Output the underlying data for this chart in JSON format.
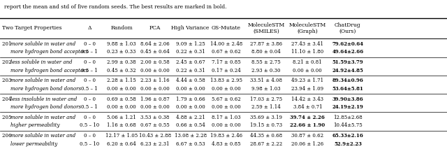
{
  "header_top": "report the mean and std of five random seeds. The best results are marked in bold.",
  "col_headers": [
    "Two Target Properties",
    "Δ",
    "Random",
    "PCA",
    "High Variance",
    "GS-Mutate",
    "MoleculeSTM\n(SMILES)",
    "MoleculeSTM\n(Graph)",
    "ChatDrug\n(Ours)"
  ],
  "rows": [
    {
      "property": "201 more soluble in water and",
      "property2": "more hydrogen bond acceptors",
      "italic": true,
      "delta1": "0 – 0",
      "delta2": "0.5 – 1",
      "random1": "9.88 ± 1.03",
      "random2": "0.23 ± 0.33",
      "pca1": "8.64 ± 2.06",
      "pca2": "0.45 ± 0.64",
      "hv1": "9.09 ± 1.25",
      "hv2": "0.22 ± 0.31",
      "gs1": "14.00 ± 2.48",
      "gs2": "0.67 ± 0.62",
      "stms1": "27.87 ± 3.86",
      "stms2": "8.80 ± 0.04",
      "stmg1": "27.43 ± 3.41",
      "stmg2": "11.10 ± 1.80",
      "cd1": "79.62±0.64",
      "cd2": "49.64±2.66",
      "bold1": true,
      "bold2": true
    },
    {
      "property": "202 less soluble in water and",
      "property2": "more hydrogen bond acceptors",
      "italic": true,
      "delta1": "0 – 0",
      "delta2": "0.5 – 1",
      "random1": "2.99 ± 0.38",
      "random2": "0.45 ± 0.32",
      "pca1": "2.00 ± 0.58",
      "pca2": "0.00 ± 0.00",
      "hv1": "2.45 ± 0.67",
      "hv2": "0.22 ± 0.31",
      "gs1": "7.17 ± 0.85",
      "gs2": "0.17 ± 0.24",
      "stms1": "8.55 ± 2.75",
      "stms2": "2.93 ± 0.30",
      "stmg1": "8.21 ± 0.81",
      "stmg2": "0.00 ± 0.00",
      "cd1": "51.59±3.79",
      "cd2": "24.92±4.85",
      "bold1": true,
      "bold2": true
    },
    {
      "property": "203 more soluble in water and",
      "property2": "more hydrogen bond donors",
      "italic": true,
      "delta1": "0 – 0",
      "delta2": "0.5 – 1",
      "random1": "2.28 ± 1.15",
      "random2": "0.00 ± 0.00",
      "pca1": "2.23 ± 1.16",
      "pca2": "0.00 ± 0.00",
      "hv1": "4.44 ± 0.58",
      "hv2": "0.00 ± 0.00",
      "gs1": "13.83 ± 2.95",
      "gs2": "0.00 ± 0.00",
      "stms1": "33.51 ± 4.08",
      "stms2": "9.98 ± 1.03",
      "stmg1": "49.23 ± 1.71",
      "stmg2": "23.94 ± 1.09",
      "cd1": "89.34±0.96",
      "cd2": "53.64±5.81",
      "bold1": true,
      "bold2": true
    },
    {
      "property": "204 less insoluble in water and",
      "property2": "more hydrogen bond donors",
      "italic": true,
      "delta1": "0 – 0",
      "delta2": "0.5 – 1",
      "random1": "0.69 ± 0.58",
      "random2": "0.00 ± 0.00",
      "pca1": "1.96 ± 0.87",
      "pca2": "0.00 ± 0.00",
      "hv1": "1.79 ± 0.66",
      "hv2": "0.00 ± 0.00",
      "gs1": "5.67 ± 0.62",
      "gs2": "0.00 ± 0.00",
      "stms1": "17.03 ± 2.75",
      "stms2": "2.59 ± 1.14",
      "stmg1": "14.42 ± 3.43",
      "stmg2": "3.84 ± 0.71",
      "cd1": "39.90±3.86",
      "cd2": "24.19±2.19",
      "bold1": true,
      "bold2": true
    },
    {
      "property": "205 more soluble in water and",
      "property2": "higher permeability",
      "italic": true,
      "delta1": "0 – 0",
      "delta2": "0.5 – 10",
      "random1": "5.06 ± 1.21",
      "random2": "1.16 ± 0.68",
      "pca1": "3.53 ± 0.38",
      "pca2": "0.67 ± 0.55",
      "hv1": "4.88 ± 2.21",
      "hv2": "0.66 ± 0.54",
      "gs1": "8.17 ± 1.03",
      "gs2": "0.00 ± 0.00",
      "stms1": "35.69 ± 3.19",
      "stms2": "19.15 ± 0.73",
      "stmg1": "39.74 ± 2.26",
      "stmg2": "22.66 ± 1.90",
      "cd1": "12.85±2.68",
      "cd2": "10.44±5.75",
      "bold1": false,
      "bold2": false,
      "stmg_bold1": true,
      "stmg_bold2": true
    },
    {
      "property": "206 more soluble in water and",
      "property2": "lower permeability",
      "italic": true,
      "delta1": "0 – 0",
      "delta2": "0.5 – 10",
      "random1": "12.17 ± 1.05",
      "random2": "6.20 ± 0.64",
      "pca1": "10.43 ± 2.88",
      "pca2": "6.23 ± 2.31",
      "hv1": "13.08 ± 2.28",
      "hv2": "6.67 ± 0.53",
      "gs1": "19.83 ± 2.46",
      "gs2": "4.83 ± 0.85",
      "stms1": "44.35 ± 0.68",
      "stms2": "28.67 ± 2.22",
      "stmg1": "30.87 ± 0.62",
      "stmg2": "20.06 ± 1.26",
      "cd1": "65.33±2.16",
      "cd2": "52.9±2.23",
      "bold1": true,
      "bold2": true
    }
  ]
}
